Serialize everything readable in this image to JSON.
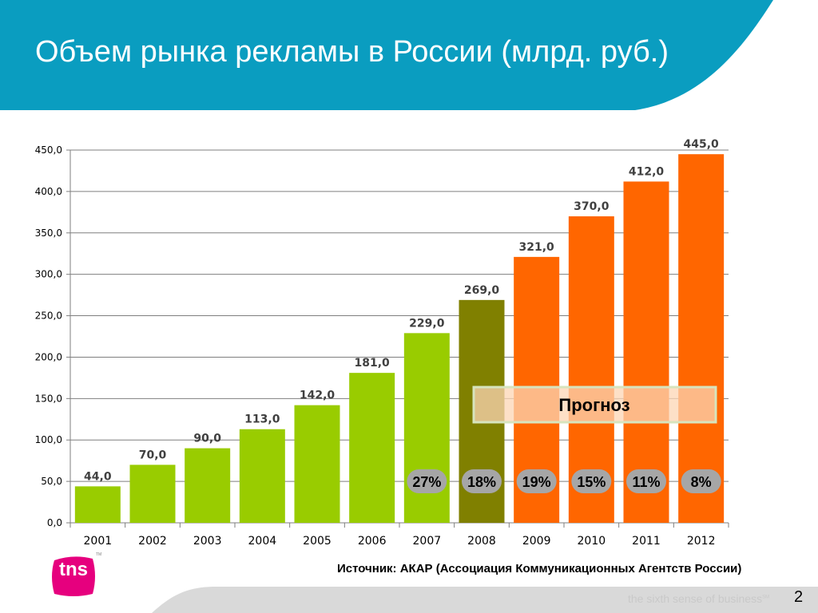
{
  "slide": {
    "title": "Объем рынка рекламы в России (млрд. руб.)",
    "source": "Источник: АКАР (Ассоциация Коммуникационных Агентств России)",
    "tagline": "the sixth sense of business",
    "tagline_mark": "SM",
    "page_number": "2",
    "logo_text": "tns",
    "logo_mark": "TM",
    "colors": {
      "header": "#0a9dc0",
      "actual": "#99cc00",
      "year_2008": "#808000",
      "forecast": "#ff6600",
      "forecast_box": "#fcd5b4",
      "pill": "#a6a6a6",
      "logo": "#e6007e",
      "footer": "#d9d9d9"
    }
  },
  "chart_data": {
    "type": "bar",
    "categories": [
      "2001",
      "2002",
      "2003",
      "2004",
      "2005",
      "2006",
      "2007",
      "2008",
      "2009",
      "2010",
      "2011",
      "2012"
    ],
    "values": [
      44.0,
      70.0,
      90.0,
      113.0,
      142.0,
      181.0,
      229.0,
      269.0,
      321.0,
      370.0,
      412.0,
      445.0
    ],
    "value_labels": [
      "44,0",
      "70,0",
      "90,0",
      "113,0",
      "142,0",
      "181,0",
      "229,0",
      "269,0",
      "321,0",
      "370,0",
      "412,0",
      "445,0"
    ],
    "bar_colors": [
      "#99cc00",
      "#99cc00",
      "#99cc00",
      "#99cc00",
      "#99cc00",
      "#99cc00",
      "#99cc00",
      "#808000",
      "#ff6600",
      "#ff6600",
      "#ff6600",
      "#ff6600"
    ],
    "ylim": [
      0,
      450
    ],
    "yticks": [
      0,
      50,
      100,
      150,
      200,
      250,
      300,
      350,
      400,
      450
    ],
    "ytick_labels": [
      "0,0",
      "50,0",
      "100,0",
      "150,0",
      "200,0",
      "250,0",
      "300,0",
      "350,0",
      "400,0",
      "450,0"
    ],
    "grid": true,
    "growth_labels": [
      {
        "category": "2007",
        "text": "27%"
      },
      {
        "category": "2008",
        "text": "18%"
      },
      {
        "category": "2009",
        "text": "19%"
      },
      {
        "category": "2010",
        "text": "15%"
      },
      {
        "category": "2011",
        "text": "11%"
      },
      {
        "category": "2012",
        "text": "8%"
      }
    ],
    "forecast_label": "Прогноз"
  }
}
